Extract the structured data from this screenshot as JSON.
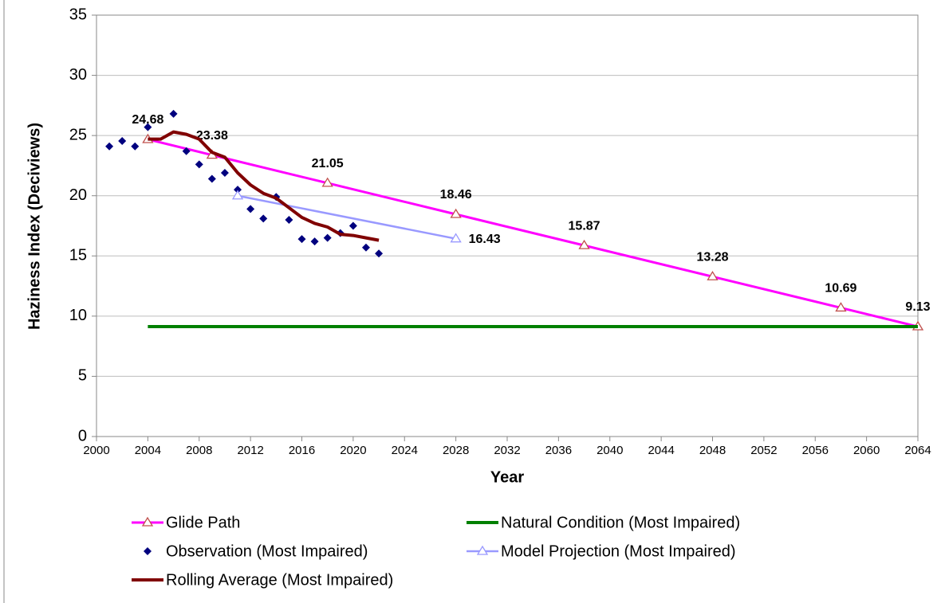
{
  "chart_data": {
    "type": "line",
    "x_label": "Year",
    "y_label": "Haziness Index (Deciviews)",
    "xlim": [
      2000,
      2064
    ],
    "xticks": [
      2000,
      2004,
      2008,
      2012,
      2016,
      2020,
      2024,
      2028,
      2032,
      2036,
      2040,
      2044,
      2048,
      2052,
      2056,
      2060,
      2064
    ],
    "ylim": [
      0,
      35
    ],
    "yticks": [
      0,
      5,
      10,
      15,
      20,
      25,
      30,
      35
    ],
    "grid": true,
    "series": [
      {
        "name": "Glide Path",
        "color": "#ff00ff",
        "marker_color": "#c0504d",
        "marker": "triangle",
        "line_width": 3,
        "data_labels": "above",
        "label_color": "#000000",
        "x": [
          2004,
          2009,
          2018,
          2028,
          2038,
          2048,
          2058,
          2064
        ],
        "values": [
          24.68,
          23.38,
          21.05,
          18.46,
          15.87,
          13.28,
          10.69,
          9.13
        ]
      },
      {
        "name": "Natural Condition (Most Impaired)",
        "color": "#008000",
        "marker": "none",
        "line_width": 4,
        "x": [
          2004,
          2064
        ],
        "values": [
          9.13,
          9.13
        ]
      },
      {
        "name": "Observation (Most Impaired)",
        "color": "#00007f",
        "marker_color": "#00007f",
        "marker": "diamond",
        "line_width": 0,
        "x": [
          2001,
          2002,
          2003,
          2004,
          2006,
          2007,
          2008,
          2009,
          2010,
          2011,
          2012,
          2013,
          2014,
          2015,
          2016,
          2017,
          2018,
          2019,
          2020,
          2021,
          2022
        ],
        "values": [
          24.1,
          24.55,
          24.1,
          25.7,
          26.8,
          23.7,
          22.6,
          21.4,
          21.9,
          20.5,
          18.9,
          18.1,
          19.9,
          18.0,
          16.4,
          16.2,
          16.5,
          16.9,
          17.5,
          15.7,
          15.2
        ]
      },
      {
        "name": "Model Projection (Most Impaired)",
        "color": "#9999ff",
        "marker_color": "#9999ff",
        "marker": "triangle",
        "line_width": 2.5,
        "data_labels": "right-last",
        "label_color": "#000080",
        "x": [
          2011,
          2028
        ],
        "values": [
          20.0,
          16.43
        ]
      },
      {
        "name": "Rolling Average (Most Impaired)",
        "color": "#800000",
        "marker": "none",
        "line_width": 4,
        "x": [
          2004,
          2005,
          2006,
          2007,
          2008,
          2009,
          2010,
          2011,
          2012,
          2013,
          2014,
          2015,
          2016,
          2017,
          2018,
          2019,
          2020,
          2021,
          2022
        ],
        "values": [
          24.7,
          24.7,
          25.3,
          25.1,
          24.7,
          23.6,
          23.2,
          21.9,
          20.9,
          20.2,
          19.8,
          19.0,
          18.2,
          17.7,
          17.4,
          16.8,
          16.7,
          16.5,
          16.3
        ]
      }
    ]
  }
}
